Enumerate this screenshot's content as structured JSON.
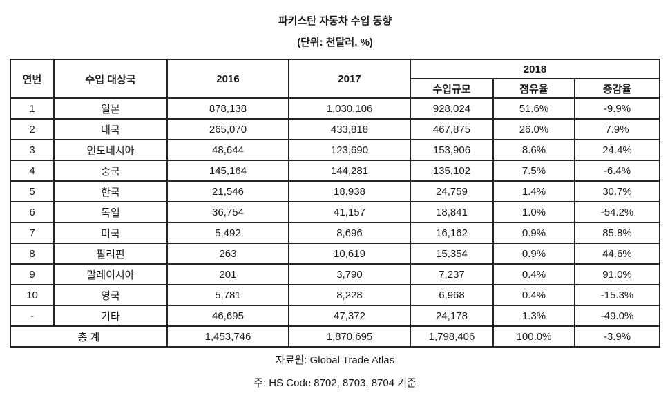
{
  "page": {
    "title": "파키스탄 자동차 수입 동향",
    "unit_note": "(단위: 천달러, %)",
    "source_note": "자료원: Global Trade Atlas",
    "hs_code_note": "주: HS Code 8702, 8703, 8704 기준"
  },
  "table": {
    "headers": {
      "no": "연번",
      "country": "수입 대상국",
      "y2016": "2016",
      "y2017": "2017",
      "y2018_group": "2018",
      "import_volume": "수입규모",
      "share": "점유율",
      "growth": "증감율"
    },
    "rows": [
      {
        "no": "1",
        "country": "일본",
        "y2016": "878,138",
        "y2017": "1,030,106",
        "volume_2018": "928,024",
        "share_2018": "51.6%",
        "growth_2018": "-9.9%"
      },
      {
        "no": "2",
        "country": "태국",
        "y2016": "265,070",
        "y2017": "433,818",
        "volume_2018": "467,875",
        "share_2018": "26.0%",
        "growth_2018": "7.9%"
      },
      {
        "no": "3",
        "country": "인도네시아",
        "y2016": "48,644",
        "y2017": "123,690",
        "volume_2018": "153,906",
        "share_2018": "8.6%",
        "growth_2018": "24.4%"
      },
      {
        "no": "4",
        "country": "중국",
        "y2016": "145,164",
        "y2017": "144,281",
        "volume_2018": "135,102",
        "share_2018": "7.5%",
        "growth_2018": "-6.4%"
      },
      {
        "no": "5",
        "country": "한국",
        "y2016": "21,546",
        "y2017": "18,938",
        "volume_2018": "24,759",
        "share_2018": "1.4%",
        "growth_2018": "30.7%"
      },
      {
        "no": "6",
        "country": "독일",
        "y2016": "36,754",
        "y2017": "41,157",
        "volume_2018": "18,841",
        "share_2018": "1.0%",
        "growth_2018": "-54.2%"
      },
      {
        "no": "7",
        "country": "미국",
        "y2016": "5,492",
        "y2017": "8,696",
        "volume_2018": "16,162",
        "share_2018": "0.9%",
        "growth_2018": "85.8%"
      },
      {
        "no": "8",
        "country": "필리핀",
        "y2016": "263",
        "y2017": "10,619",
        "volume_2018": "15,354",
        "share_2018": "0.9%",
        "growth_2018": "44.6%"
      },
      {
        "no": "9",
        "country": "말레이시아",
        "y2016": "201",
        "y2017": "3,790",
        "volume_2018": "7,237",
        "share_2018": "0.4%",
        "growth_2018": "91.0%"
      },
      {
        "no": "10",
        "country": "영국",
        "y2016": "5,781",
        "y2017": "8,228",
        "volume_2018": "6,968",
        "share_2018": "0.4%",
        "growth_2018": "-15.3%"
      },
      {
        "no": "-",
        "country": "기타",
        "y2016": "46,695",
        "y2017": "47,372",
        "volume_2018": "24,178",
        "share_2018": "1.3%",
        "growth_2018": "-49.0%"
      }
    ],
    "total": {
      "label": "총 계",
      "y2016": "1,453,746",
      "y2017": "1,870,695",
      "volume_2018": "1,798,406",
      "share_2018": "100.0%",
      "growth_2018": "-3.9%"
    }
  }
}
